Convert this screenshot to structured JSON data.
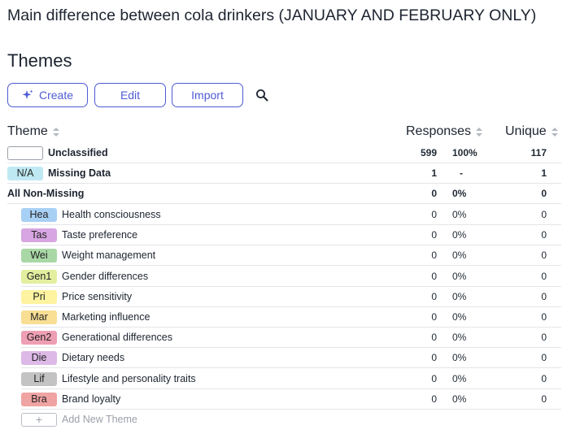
{
  "header": {
    "page_title": "Main difference between cola drinkers (JANUARY AND FEBRUARY ONLY)",
    "section_title": "Themes"
  },
  "toolbar": {
    "create_label": "Create",
    "edit_label": "Edit",
    "import_label": "Import",
    "accent_color": "#4e5bd4",
    "create_icon": "sparkle-icon",
    "search_icon": "search-icon"
  },
  "table": {
    "headers": {
      "theme": "Theme",
      "responses": "Responses",
      "unique": "Unique"
    },
    "summary_rows": [
      {
        "tag": "",
        "tag_color": "#ffffff",
        "label": "Unclassified",
        "count": "599",
        "pct": "100%",
        "unique": "117"
      },
      {
        "tag": "N/A",
        "tag_color": "#bfe9f2",
        "label": "Missing Data",
        "count": "1",
        "pct": "-",
        "unique": "1"
      },
      {
        "label": "All Non-Missing",
        "count": "0",
        "pct": "0%",
        "unique": "0"
      }
    ],
    "themes": [
      {
        "tag": "Hea",
        "tag_color": "#a8d0f5",
        "label": "Health consciousness",
        "count": "0",
        "pct": "0%",
        "unique": "0"
      },
      {
        "tag": "Tas",
        "tag_color": "#d7a6e2",
        "label": "Taste preference",
        "count": "0",
        "pct": "0%",
        "unique": "0"
      },
      {
        "tag": "Wei",
        "tag_color": "#a9d8a6",
        "label": "Weight management",
        "count": "0",
        "pct": "0%",
        "unique": "0"
      },
      {
        "tag": "Gen1",
        "tag_color": "#e3ef9f",
        "label": "Gender differences",
        "count": "0",
        "pct": "0%",
        "unique": "0"
      },
      {
        "tag": "Pri",
        "tag_color": "#fdf3a0",
        "label": "Price sensitivity",
        "count": "0",
        "pct": "0%",
        "unique": "0"
      },
      {
        "tag": "Mar",
        "tag_color": "#f8df94",
        "label": "Marketing influence",
        "count": "0",
        "pct": "0%",
        "unique": "0"
      },
      {
        "tag": "Gen2",
        "tag_color": "#ee9fb4",
        "label": "Generational differences",
        "count": "0",
        "pct": "0%",
        "unique": "0"
      },
      {
        "tag": "Die",
        "tag_color": "#dcb9e6",
        "label": "Dietary needs",
        "count": "0",
        "pct": "0%",
        "unique": "0"
      },
      {
        "tag": "Lif",
        "tag_color": "#c3c3c3",
        "label": "Lifestyle and personality traits",
        "count": "0",
        "pct": "0%",
        "unique": "0"
      },
      {
        "tag": "Bra",
        "tag_color": "#f0a3a3",
        "label": "Brand loyalty",
        "count": "0",
        "pct": "0%",
        "unique": "0"
      }
    ],
    "add_new_label": "Add New Theme",
    "add_icon": "plus-icon"
  }
}
